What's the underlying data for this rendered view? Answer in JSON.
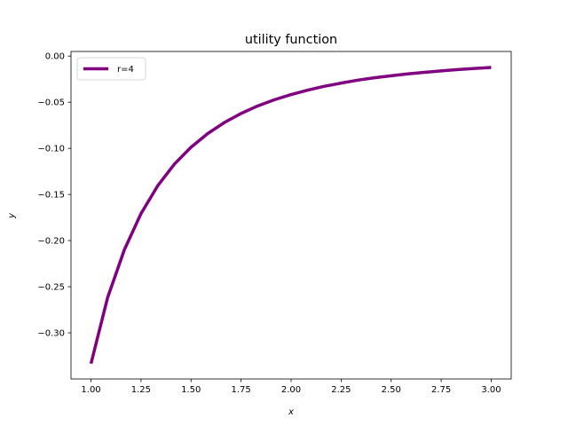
{
  "chart_data": {
    "type": "line",
    "title": "utility function",
    "xlabel": "x",
    "ylabel": "y",
    "xlim": [
      0.9,
      3.1
    ],
    "ylim": [
      -0.35,
      0.005
    ],
    "xticks": [
      "1.00",
      "1.25",
      "1.50",
      "1.75",
      "2.00",
      "2.25",
      "2.50",
      "2.75",
      "3.00"
    ],
    "yticks": [
      "0.00",
      "−0.05",
      "−0.10",
      "−0.15",
      "−0.20",
      "−0.25",
      "−0.30"
    ],
    "grid": false,
    "legend_position": "upper-left",
    "series": [
      {
        "name": "r=4",
        "color": "#800080",
        "x": [
          1.0,
          1.0833,
          1.1667,
          1.25,
          1.3333,
          1.4167,
          1.5,
          1.5833,
          1.6667,
          1.75,
          1.8333,
          1.9167,
          2.0,
          2.0833,
          2.1667,
          2.25,
          2.3333,
          2.4167,
          2.5,
          2.5833,
          2.6667,
          2.75,
          2.8333,
          2.9167,
          3.0
        ],
        "y": [
          -0.3333,
          -0.2616,
          -0.2099,
          -0.1707,
          -0.1406,
          -0.1171,
          -0.0988,
          -0.084,
          -0.072,
          -0.0622,
          -0.054,
          -0.0473,
          -0.0417,
          -0.0369,
          -0.0327,
          -0.0293,
          -0.0261,
          -0.0235,
          -0.0213,
          -0.0193,
          -0.0176,
          -0.016,
          -0.0146,
          -0.0134,
          -0.0123
        ]
      }
    ]
  }
}
